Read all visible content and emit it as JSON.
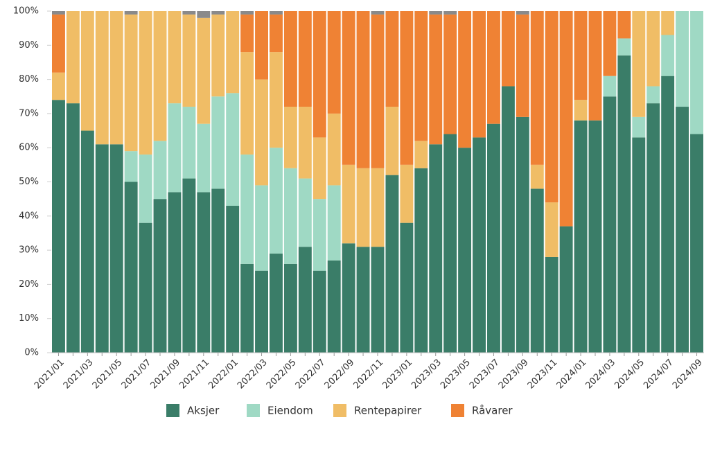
{
  "chart_data": {
    "type": "stacked_bar",
    "categories": [
      "2021/01",
      null,
      "2021/03",
      null,
      "2021/05",
      null,
      "2021/07",
      null,
      "2021/09",
      null,
      "2021/11",
      null,
      "2022/01",
      null,
      "2022/03",
      null,
      "2022/05",
      null,
      "2022/07",
      null,
      "2022/09",
      null,
      "2022/11",
      null,
      "2023/01",
      null,
      "2023/03",
      null,
      "2023/05",
      null,
      "2023/07",
      null,
      "2023/09",
      null,
      "2023/11",
      null,
      "2024/01",
      null,
      "2024/03",
      null,
      "2024/05",
      null,
      "2024/07",
      null,
      "2024/09"
    ],
    "series": [
      {
        "name": "Aksjer",
        "color": "#3a7d68",
        "values": [
          74,
          73,
          65,
          61,
          61,
          50,
          38,
          45,
          47,
          51,
          47,
          48,
          43,
          26,
          24,
          29,
          26,
          31,
          24,
          27,
          32,
          31,
          31,
          52,
          38,
          54,
          61,
          64,
          60,
          63,
          67,
          78,
          69,
          48,
          28,
          37,
          68,
          68,
          75,
          87,
          63,
          73,
          81,
          72,
          64
        ]
      },
      {
        "name": "Eiendom",
        "color": "#9fd9c4",
        "values": [
          0,
          0,
          0,
          0,
          0,
          9,
          20,
          17,
          26,
          21,
          20,
          27,
          33,
          32,
          25,
          31,
          28,
          20,
          21,
          22,
          0,
          0,
          0,
          0,
          0,
          0,
          0,
          0,
          0,
          0,
          0,
          0,
          0,
          0,
          0,
          0,
          0,
          0,
          6,
          5,
          6,
          5,
          12,
          28,
          36
        ]
      },
      {
        "name": "Rentepapirer",
        "color": "#f0bd66",
        "values": [
          8,
          27,
          35,
          39,
          39,
          40,
          42,
          38,
          27,
          27,
          31,
          24,
          24,
          30,
          31,
          28,
          18,
          21,
          18,
          21,
          23,
          23,
          23,
          20,
          17,
          8,
          0,
          0,
          0,
          0,
          0,
          0,
          0,
          7,
          16,
          0,
          6,
          0,
          0,
          0,
          31,
          22,
          7,
          0,
          0
        ]
      },
      {
        "name": "Råvarer",
        "color": "#ef8234",
        "values": [
          17,
          0,
          0,
          0,
          0,
          0,
          0,
          0,
          0,
          0,
          0,
          0,
          0,
          11,
          20,
          11,
          28,
          28,
          37,
          30,
          45,
          46,
          45,
          28,
          45,
          38,
          38,
          35,
          40,
          37,
          33,
          22,
          30,
          45,
          56,
          63,
          26,
          32,
          19,
          8,
          0,
          0,
          0,
          0,
          0
        ]
      },
      {
        "color": "#8a8a8a",
        "values": [
          1,
          0,
          0,
          0,
          0,
          1,
          0,
          0,
          0,
          1,
          2,
          1,
          0,
          1,
          0,
          1,
          0,
          0,
          0,
          0,
          0,
          0,
          1,
          0,
          0,
          0,
          1,
          1,
          0,
          0,
          0,
          0,
          1,
          0,
          0,
          0,
          0,
          0,
          0,
          0,
          0,
          0,
          0,
          0,
          0
        ]
      }
    ],
    "ylim": [
      0,
      100
    ],
    "yticks": [
      {
        "value": 0,
        "label": "0%"
      },
      {
        "value": 10,
        "label": "10%"
      },
      {
        "value": 20,
        "label": "20%"
      },
      {
        "value": 30,
        "label": "30%"
      },
      {
        "value": 40,
        "label": "40%"
      },
      {
        "value": 50,
        "label": "50%"
      },
      {
        "value": 60,
        "label": "60%"
      },
      {
        "value": 70,
        "label": "70%"
      },
      {
        "value": 80,
        "label": "80%"
      },
      {
        "value": 90,
        "label": "90%"
      },
      {
        "value": 100,
        "label": "100%"
      }
    ],
    "legend": "bottom"
  }
}
